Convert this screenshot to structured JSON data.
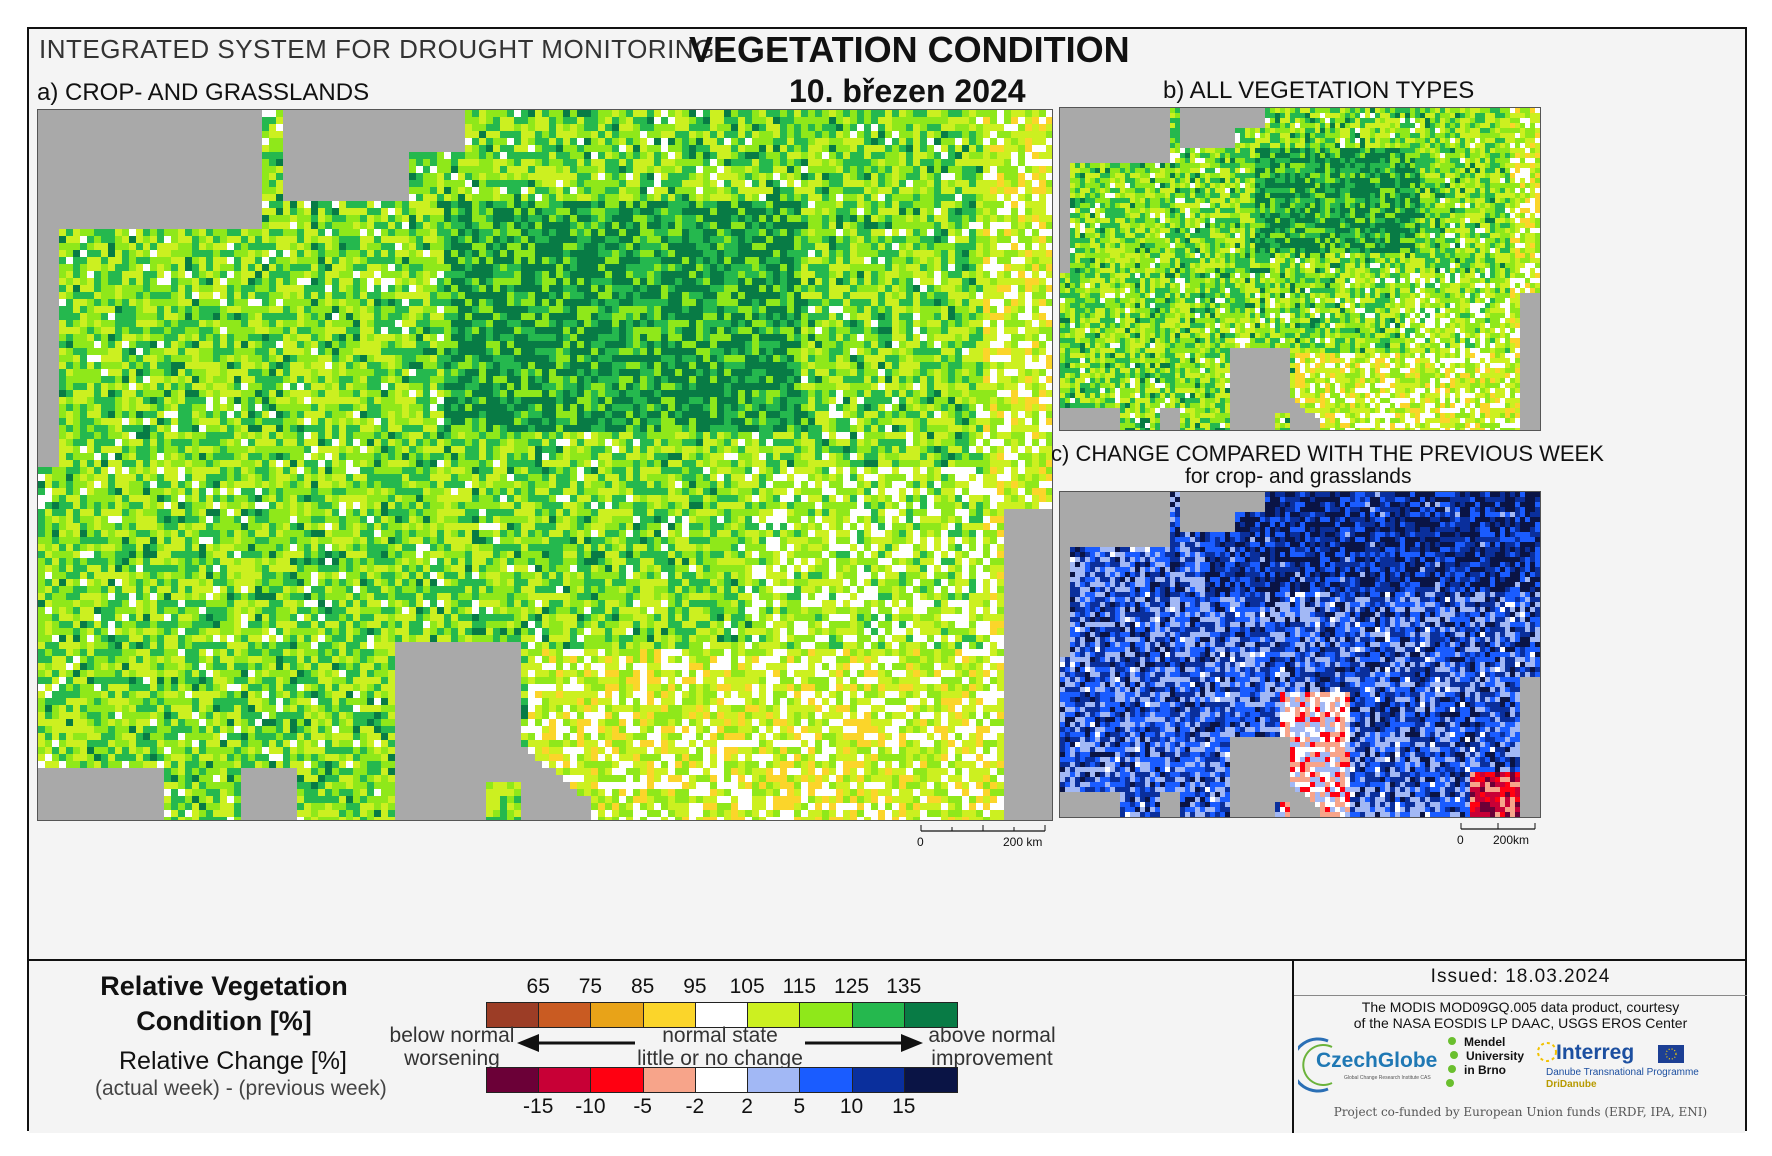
{
  "header": {
    "system": "INTEGRATED SYSTEM FOR DROUGHT MONITORING",
    "title": "VEGETATION CONDITION",
    "date": "10. březen 2024"
  },
  "panels": {
    "a": {
      "title": "a) CROP- AND GRASSLANDS",
      "scale_zero": "0",
      "scale_km": "200 km"
    },
    "b": {
      "title": "b) ALL VEGETATION TYPES"
    },
    "c": {
      "title": "c) CHANGE COMPARED WITH THE PREVIOUS WEEK",
      "subtitle": "for crop- and grasslands",
      "scale_zero": "0",
      "scale_km": "200km"
    }
  },
  "legend": {
    "rvc_title_line1": "Relative Vegetation",
    "rvc_title_line2": "Condition [%]",
    "rc_title": "Relative Change [%]",
    "rc_formula": "(actual week) - (previous week)",
    "rvc_ticks": [
      "65",
      "75",
      "85",
      "95",
      "105",
      "115",
      "125",
      "135"
    ],
    "rvc_colors": [
      "#9c3d26",
      "#c95b22",
      "#e8a318",
      "#fbd52a",
      "#ffffff",
      "#ccf020",
      "#8fe81a",
      "#25b84e",
      "#087b45"
    ],
    "rc_ticks": [
      "-15",
      "-10",
      "-5",
      "-2",
      "2",
      "5",
      "10",
      "15"
    ],
    "rc_colors": [
      "#6b0037",
      "#c80036",
      "#ff0011",
      "#f7a48a",
      "#ffffff",
      "#a2b8f5",
      "#1a5cff",
      "#0a2f9c",
      "#0a1445"
    ],
    "left_line1": "below normal",
    "left_line2": "worsening",
    "center_line1": "normal state",
    "center_line2": "little or no change",
    "right_line1": "above normal",
    "right_line2": "improvement"
  },
  "info": {
    "issued": "Issued: 18.03.2024",
    "credit_line1": "The MODIS MOD09GQ.005 data product, courtesy",
    "credit_line2": "of the NASA EOSDIS LP DAAC, USGS EROS Center",
    "czechglobe": "CzechGlobe",
    "czechglobe_sub": "Global Change Research Institute CAS",
    "mendel_line1": "Mendel",
    "mendel_line2": "University",
    "mendel_line3": "in Brno",
    "interreg": "Interreg",
    "interreg_sub": "Danube Transnational Programme",
    "dridanube": "DriDanube",
    "cofunded": "Project co-funded by European Union funds (ERDF, IPA, ENI)"
  }
}
